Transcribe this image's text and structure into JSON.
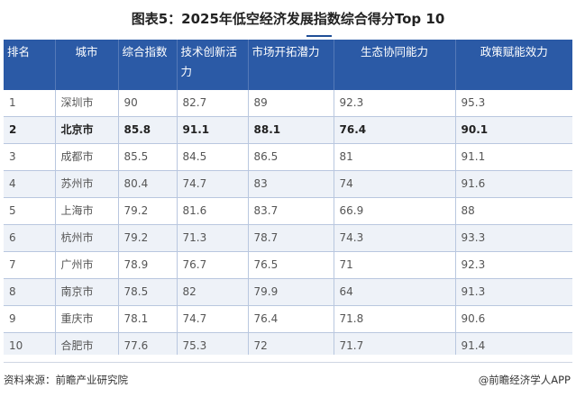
{
  "title": "图表5：2025年低空经济发展指数综合得分Top 10",
  "table": {
    "headers": [
      "排名",
      "城市",
      "综合指数",
      "技术创新活力",
      "市场开拓潜力",
      "生态协同能力",
      "政策赋能效力"
    ],
    "rows": [
      [
        "1",
        "深圳市",
        "90",
        "82.7",
        "89",
        "92.3",
        "95.3"
      ],
      [
        "2",
        "北京市",
        "85.8",
        "91.1",
        "88.1",
        "76.4",
        "90.1"
      ],
      [
        "3",
        "成都市",
        "85.5",
        "84.5",
        "86.5",
        "81",
        "91.1"
      ],
      [
        "4",
        "苏州市",
        "80.4",
        "74.7",
        "83",
        "74",
        "91.6"
      ],
      [
        "5",
        "上海市",
        "79.2",
        "81.6",
        "83.7",
        "66.9",
        "88"
      ],
      [
        "6",
        "杭州市",
        "79.2",
        "71.3",
        "78.7",
        "74.3",
        "93.3"
      ],
      [
        "7",
        "广州市",
        "78.9",
        "76.7",
        "76.5",
        "71",
        "92.3"
      ],
      [
        "8",
        "南京市",
        "78.5",
        "82",
        "79.9",
        "64",
        "91.3"
      ],
      [
        "9",
        "重庆市",
        "78.1",
        "74.7",
        "76.4",
        "71.8",
        "90.6"
      ],
      [
        "10",
        "合肥市",
        "77.6",
        "75.3",
        "72",
        "71.7",
        "91.4"
      ]
    ]
  },
  "footer": {
    "source": "资料来源：前瞻产业研究院",
    "brand": "@前瞻经济学人APP"
  },
  "colors": {
    "header_bg": "#2b5aa6",
    "alt_row_bg": "#eef2f8"
  }
}
